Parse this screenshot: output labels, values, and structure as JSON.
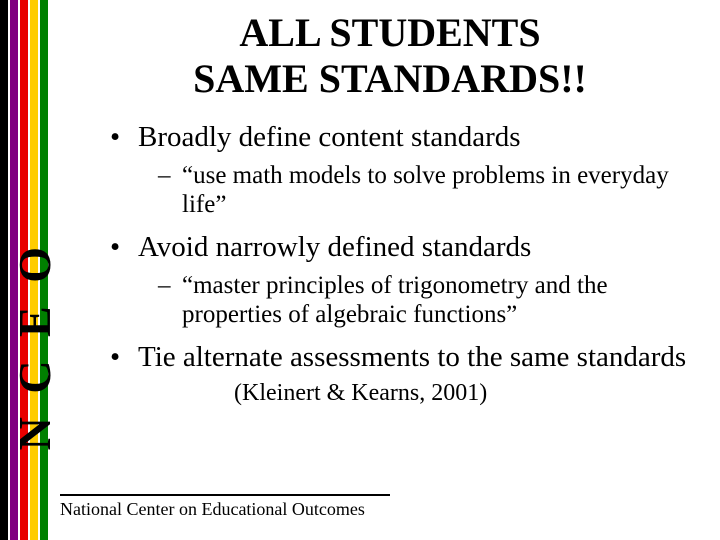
{
  "stripes": {
    "colors": [
      "#000000",
      "#800080",
      "#e80000",
      "#ffcc00",
      "#008000"
    ]
  },
  "nceo_label": "N C E O",
  "title_line1": "ALL STUDENTS",
  "title_line2": "SAME STANDARDS!!",
  "bullets": {
    "b1": "Broadly define content standards",
    "b1_sub": "“use math models to solve problems in everyday life”",
    "b2": "Avoid narrowly defined standards",
    "b2_sub": "“master principles of trigonometry and the properties of algebraic functions”",
    "b3": "Tie alternate assessments to the same standards",
    "citation": "(Kleinert & Kearns, 2001)"
  },
  "markers": {
    "l1": "•",
    "l2": "–"
  },
  "footer": "National Center on Educational Outcomes",
  "fonts": {
    "title_size_pt": 40,
    "bullet_l1_size_pt": 29,
    "bullet_l2_size_pt": 25,
    "footer_size_pt": 18,
    "family": "Times New Roman"
  },
  "colors": {
    "background": "#ffffff",
    "text": "#000000"
  }
}
